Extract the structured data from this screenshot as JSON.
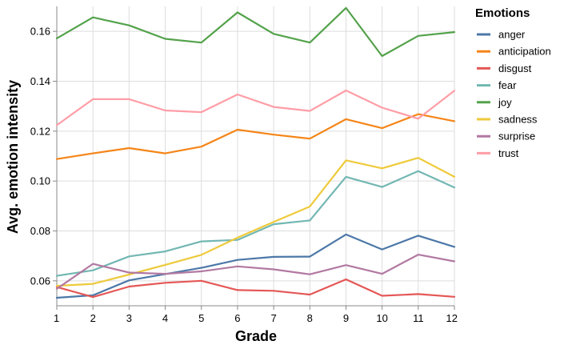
{
  "chart_data": {
    "type": "line",
    "title": "",
    "xlabel": "Grade",
    "ylabel": "Avg. emotion intensity",
    "x": [
      1,
      2,
      3,
      4,
      5,
      6,
      7,
      8,
      9,
      10,
      11,
      12
    ],
    "xlim": [
      1,
      12
    ],
    "ylim": [
      0.05,
      0.17
    ],
    "yticks": [
      0.06,
      0.08,
      0.1,
      0.12,
      0.14,
      0.16
    ],
    "ytick_labels": [
      "0.06",
      "0.08",
      "0.10",
      "0.12",
      "0.14",
      "0.16"
    ],
    "xtick_labels": [
      "1",
      "2",
      "3",
      "4",
      "5",
      "6",
      "7",
      "8",
      "9",
      "10",
      "11",
      "12"
    ],
    "grid": true,
    "legend_title": "Emotions",
    "legend_position": "right",
    "series": [
      {
        "name": "anger",
        "color": "#4c78a8",
        "values": [
          0.0532,
          0.0542,
          0.0602,
          0.0627,
          0.0652,
          0.0684,
          0.0696,
          0.0697,
          0.0786,
          0.0726,
          0.0781,
          0.0736
        ]
      },
      {
        "name": "anticipation",
        "color": "#f58518",
        "values": [
          0.1088,
          0.1111,
          0.1132,
          0.1111,
          0.1138,
          0.1206,
          0.1186,
          0.117,
          0.1248,
          0.1212,
          0.1268,
          0.124
        ]
      },
      {
        "name": "disgust",
        "color": "#e45756",
        "values": [
          0.0575,
          0.0535,
          0.0577,
          0.0592,
          0.06,
          0.0563,
          0.056,
          0.0545,
          0.0606,
          0.054,
          0.0547,
          0.0536
        ]
      },
      {
        "name": "fear",
        "color": "#72b7b2",
        "values": [
          0.062,
          0.0642,
          0.0698,
          0.0718,
          0.0758,
          0.0764,
          0.0827,
          0.0842,
          0.1017,
          0.0976,
          0.104,
          0.0974
        ]
      },
      {
        "name": "joy",
        "color": "#54a24b",
        "values": [
          0.1572,
          0.1656,
          0.1624,
          0.157,
          0.1555,
          0.1676,
          0.159,
          0.1555,
          0.1694,
          0.1501,
          0.1582,
          0.1597
        ]
      },
      {
        "name": "sadness",
        "color": "#eeca3b",
        "values": [
          0.058,
          0.0588,
          0.0625,
          0.0664,
          0.0704,
          0.0773,
          0.0836,
          0.0898,
          0.1083,
          0.1051,
          0.1093,
          0.1017
        ]
      },
      {
        "name": "surprise",
        "color": "#b279a2",
        "values": [
          0.0568,
          0.0668,
          0.0633,
          0.0628,
          0.0638,
          0.0658,
          0.0646,
          0.0626,
          0.0663,
          0.0628,
          0.0705,
          0.0678
        ]
      },
      {
        "name": "trust",
        "color": "#ff9da6",
        "values": [
          0.1224,
          0.1328,
          0.1328,
          0.1283,
          0.1276,
          0.1347,
          0.1297,
          0.1281,
          0.1363,
          0.1294,
          0.125,
          0.1362
        ]
      }
    ]
  }
}
